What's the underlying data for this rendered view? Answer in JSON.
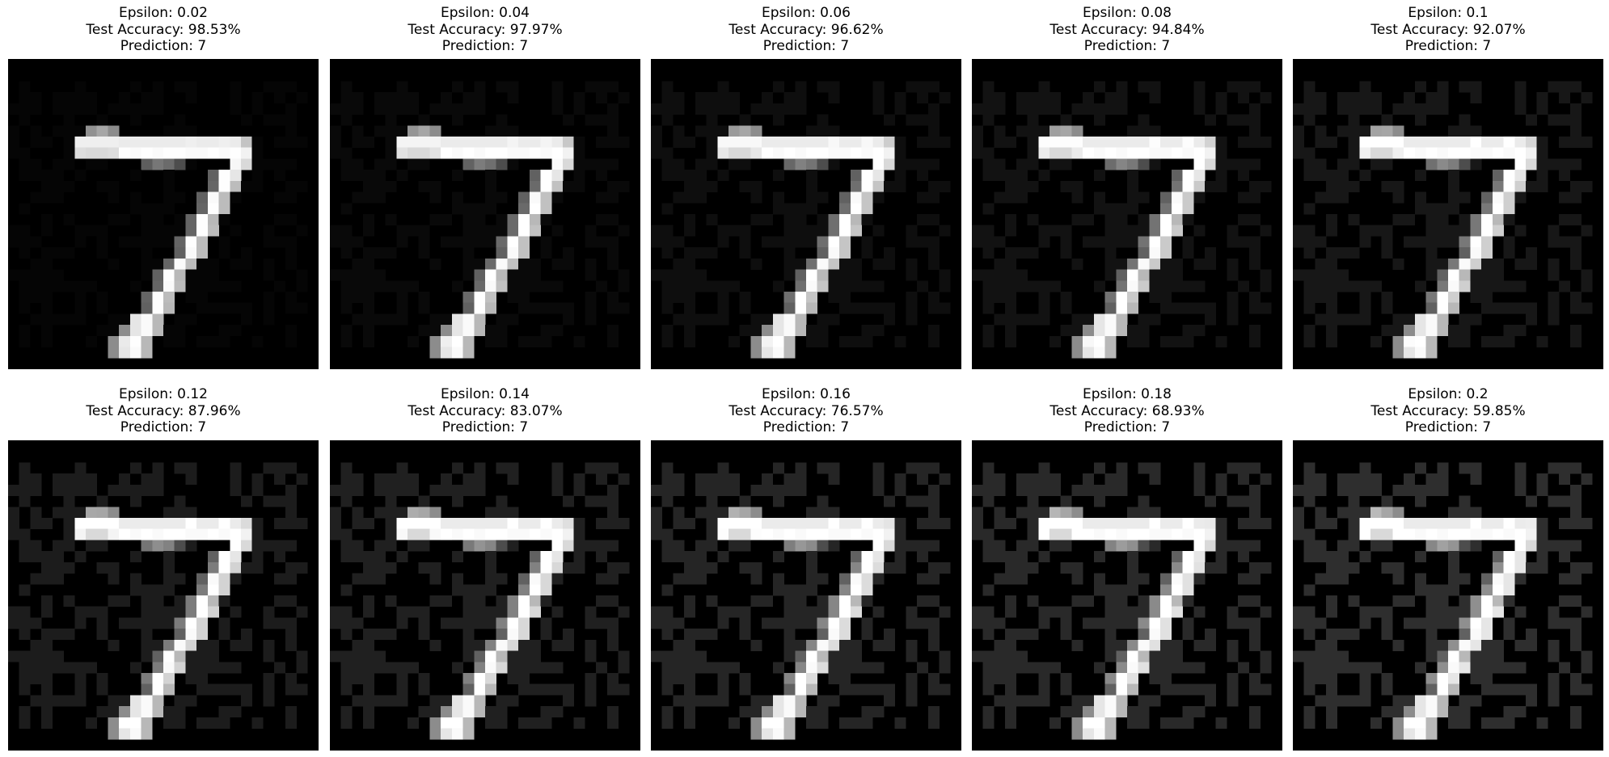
{
  "figure": {
    "background": "#ffffff",
    "panels": [
      {
        "epsilon_line": "Epsilon: 0.02",
        "accuracy_line": "Test Accuracy: 98.53%",
        "prediction_line": "Prediction: 7",
        "epsilon": 0.02,
        "accuracy": 98.53,
        "prediction": 7
      },
      {
        "epsilon_line": "Epsilon: 0.04",
        "accuracy_line": "Test Accuracy: 97.97%",
        "prediction_line": "Prediction: 7",
        "epsilon": 0.04,
        "accuracy": 97.97,
        "prediction": 7
      },
      {
        "epsilon_line": "Epsilon: 0.06",
        "accuracy_line": "Test Accuracy: 96.62%",
        "prediction_line": "Prediction: 7",
        "epsilon": 0.06,
        "accuracy": 96.62,
        "prediction": 7
      },
      {
        "epsilon_line": "Epsilon: 0.08",
        "accuracy_line": "Test Accuracy: 94.84%",
        "prediction_line": "Prediction: 7",
        "epsilon": 0.08,
        "accuracy": 94.84,
        "prediction": 7
      },
      {
        "epsilon_line": "Epsilon: 0.1",
        "accuracy_line": "Test Accuracy: 92.07%",
        "prediction_line": "Prediction: 7",
        "epsilon": 0.1,
        "accuracy": 92.07,
        "prediction": 7
      },
      {
        "epsilon_line": "Epsilon: 0.12",
        "accuracy_line": "Test Accuracy: 87.96%",
        "prediction_line": "Prediction: 7",
        "epsilon": 0.12,
        "accuracy": 87.96,
        "prediction": 7
      },
      {
        "epsilon_line": "Epsilon: 0.14",
        "accuracy_line": "Test Accuracy: 83.07%",
        "prediction_line": "Prediction: 7",
        "epsilon": 0.14,
        "accuracy": 83.07,
        "prediction": 7
      },
      {
        "epsilon_line": "Epsilon: 0.16",
        "accuracy_line": "Test Accuracy: 76.57%",
        "prediction_line": "Prediction: 7",
        "epsilon": 0.16,
        "accuracy": 76.57,
        "prediction": 7
      },
      {
        "epsilon_line": "Epsilon: 0.18",
        "accuracy_line": "Test Accuracy: 68.93%",
        "prediction_line": "Prediction: 7",
        "epsilon": 0.18,
        "accuracy": 68.93,
        "prediction": 7
      },
      {
        "epsilon_line": "Epsilon: 0.2",
        "accuracy_line": "Test Accuracy: 59.85%",
        "prediction_line": "Prediction: 7",
        "epsilon": 0.2,
        "accuracy": 59.85,
        "prediction": 7
      }
    ]
  }
}
